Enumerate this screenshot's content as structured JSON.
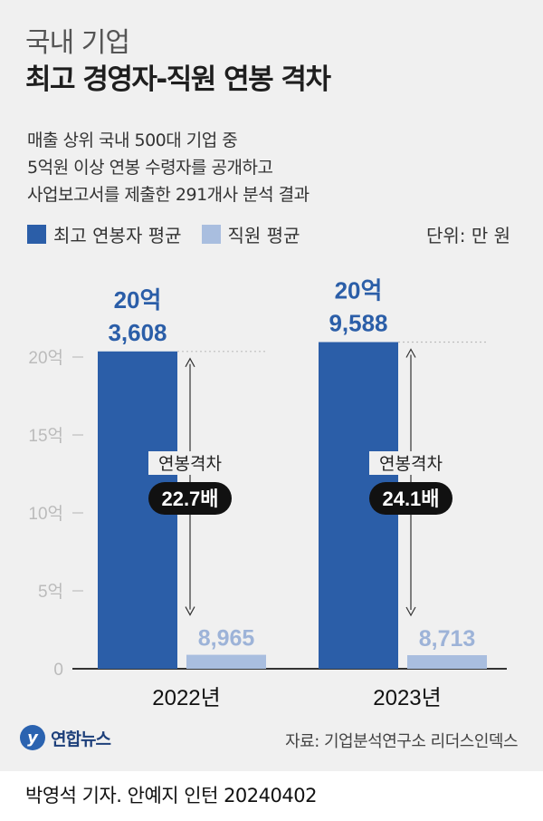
{
  "header": {
    "subtitle": "국내 기업",
    "title": "최고 경영자-직원 연봉 격차",
    "description": [
      "매출 상위 국내 500대 기업 중",
      "5억원 이상 연봉 수령자를 공개하고",
      "사업보고서를 제출한 291개사 분석 결과"
    ]
  },
  "legend": {
    "series1": "최고 연봉자 평균",
    "series2": "직원 평균",
    "unit": "단위: 만 원"
  },
  "colors": {
    "exec": "#2b5ea8",
    "staff": "#a9bedf",
    "bg": "#f0f0f0",
    "label_exec": "#2b5ea8",
    "label_staff": "#9db3d8"
  },
  "chart_data": {
    "type": "bar",
    "categories": [
      "2022년",
      "2023년"
    ],
    "series": [
      {
        "name": "최고 연봉자 평균",
        "values": [
          203608,
          209588
        ],
        "labels_line1": [
          "20억",
          "20억"
        ],
        "labels_line2": [
          "3,608",
          "9,588"
        ]
      },
      {
        "name": "직원 평균",
        "values": [
          8965,
          8713
        ],
        "labels": [
          "8,965",
          "8,713"
        ]
      }
    ],
    "y_ticks": [
      {
        "value": 0,
        "label": "0"
      },
      {
        "value": 50000,
        "label": "5억"
      },
      {
        "value": 100000,
        "label": "10억"
      },
      {
        "value": 150000,
        "label": "15억"
      },
      {
        "value": 200000,
        "label": "20억"
      }
    ],
    "ylim": [
      0,
      220000
    ],
    "gap_labels": [
      "연봉격차",
      "연봉격차"
    ],
    "gap_values": [
      "22.7배",
      "24.1배"
    ]
  },
  "footer": {
    "logo_mark": "y",
    "logo_text": "연합뉴스",
    "source": "자료: 기업분석연구소 리더스인덱스",
    "credit": "박영석 기자. 안예지 인턴  20240402"
  }
}
